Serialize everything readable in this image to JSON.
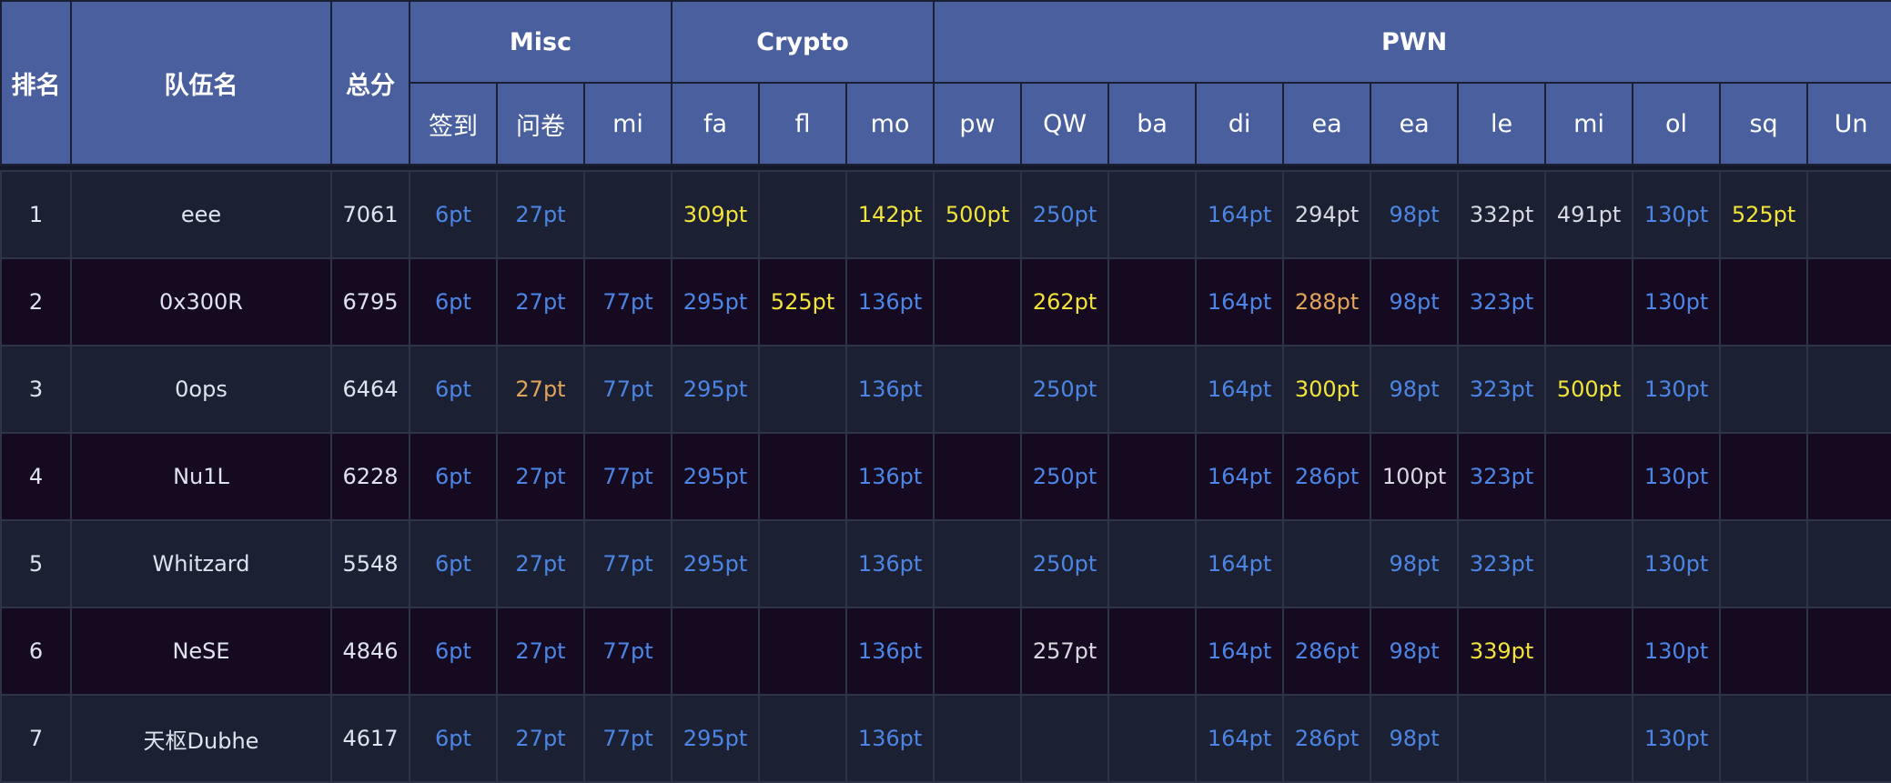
{
  "header": {
    "rank": "排名",
    "team": "队伍名",
    "total": "总分",
    "categories": [
      {
        "label": "Misc",
        "span": 3
      },
      {
        "label": "Crypto",
        "span": 3
      },
      {
        "label": "PWN",
        "span": 11
      }
    ],
    "challenges": [
      "签到",
      "问卷",
      "mi",
      "fa",
      "fl",
      "mo",
      "pw",
      "QW",
      "ba",
      "di",
      "ea",
      "ea",
      "le",
      "mi",
      "ol",
      "sq",
      "Un"
    ]
  },
  "colors": {
    "blue": "#4b86e6",
    "yellow": "#f2e43a",
    "orange": "#e0a45b",
    "white": "#d8d8e0",
    "header_bg": "#4a5f9e"
  },
  "rows": [
    {
      "rank": "1",
      "team": "eee",
      "total": "7061",
      "scores": [
        [
          "6pt",
          "blue"
        ],
        [
          "27pt",
          "blue"
        ],
        [
          "",
          ""
        ],
        [
          "309pt",
          "yellow"
        ],
        [
          "",
          ""
        ],
        [
          "142pt",
          "yellow"
        ],
        [
          "500pt",
          "yellow"
        ],
        [
          "250pt",
          "blue"
        ],
        [
          "",
          ""
        ],
        [
          "164pt",
          "blue"
        ],
        [
          "294pt",
          "white"
        ],
        [
          "98pt",
          "blue"
        ],
        [
          "332pt",
          "white"
        ],
        [
          "491pt",
          "white"
        ],
        [
          "130pt",
          "blue"
        ],
        [
          "525pt",
          "yellow"
        ],
        [
          "",
          ""
        ]
      ]
    },
    {
      "rank": "2",
      "team": "0x300R",
      "total": "6795",
      "scores": [
        [
          "6pt",
          "blue"
        ],
        [
          "27pt",
          "blue"
        ],
        [
          "77pt",
          "blue"
        ],
        [
          "295pt",
          "blue"
        ],
        [
          "525pt",
          "yellow"
        ],
        [
          "136pt",
          "blue"
        ],
        [
          "",
          ""
        ],
        [
          "262pt",
          "yellow"
        ],
        [
          "",
          ""
        ],
        [
          "164pt",
          "blue"
        ],
        [
          "288pt",
          "orange"
        ],
        [
          "98pt",
          "blue"
        ],
        [
          "323pt",
          "blue"
        ],
        [
          "",
          ""
        ],
        [
          "130pt",
          "blue"
        ],
        [
          "",
          ""
        ],
        [
          "",
          ""
        ]
      ]
    },
    {
      "rank": "3",
      "team": "0ops",
      "total": "6464",
      "scores": [
        [
          "6pt",
          "blue"
        ],
        [
          "27pt",
          "orange"
        ],
        [
          "77pt",
          "blue"
        ],
        [
          "295pt",
          "blue"
        ],
        [
          "",
          ""
        ],
        [
          "136pt",
          "blue"
        ],
        [
          "",
          ""
        ],
        [
          "250pt",
          "blue"
        ],
        [
          "",
          ""
        ],
        [
          "164pt",
          "blue"
        ],
        [
          "300pt",
          "yellow"
        ],
        [
          "98pt",
          "blue"
        ],
        [
          "323pt",
          "blue"
        ],
        [
          "500pt",
          "yellow"
        ],
        [
          "130pt",
          "blue"
        ],
        [
          "",
          ""
        ],
        [
          "",
          ""
        ]
      ]
    },
    {
      "rank": "4",
      "team": "Nu1L",
      "total": "6228",
      "scores": [
        [
          "6pt",
          "blue"
        ],
        [
          "27pt",
          "blue"
        ],
        [
          "77pt",
          "blue"
        ],
        [
          "295pt",
          "blue"
        ],
        [
          "",
          ""
        ],
        [
          "136pt",
          "blue"
        ],
        [
          "",
          ""
        ],
        [
          "250pt",
          "blue"
        ],
        [
          "",
          ""
        ],
        [
          "164pt",
          "blue"
        ],
        [
          "286pt",
          "blue"
        ],
        [
          "100pt",
          "white"
        ],
        [
          "323pt",
          "blue"
        ],
        [
          "",
          ""
        ],
        [
          "130pt",
          "blue"
        ],
        [
          "",
          ""
        ],
        [
          "",
          ""
        ]
      ]
    },
    {
      "rank": "5",
      "team": "Whitzard",
      "total": "5548",
      "scores": [
        [
          "6pt",
          "blue"
        ],
        [
          "27pt",
          "blue"
        ],
        [
          "77pt",
          "blue"
        ],
        [
          "295pt",
          "blue"
        ],
        [
          "",
          ""
        ],
        [
          "136pt",
          "blue"
        ],
        [
          "",
          ""
        ],
        [
          "250pt",
          "blue"
        ],
        [
          "",
          ""
        ],
        [
          "164pt",
          "blue"
        ],
        [
          "",
          ""
        ],
        [
          "98pt",
          "blue"
        ],
        [
          "323pt",
          "blue"
        ],
        [
          "",
          ""
        ],
        [
          "130pt",
          "blue"
        ],
        [
          "",
          ""
        ],
        [
          "",
          ""
        ]
      ]
    },
    {
      "rank": "6",
      "team": "NeSE",
      "total": "4846",
      "scores": [
        [
          "6pt",
          "blue"
        ],
        [
          "27pt",
          "blue"
        ],
        [
          "77pt",
          "blue"
        ],
        [
          "",
          ""
        ],
        [
          "",
          ""
        ],
        [
          "136pt",
          "blue"
        ],
        [
          "",
          ""
        ],
        [
          "257pt",
          "white"
        ],
        [
          "",
          ""
        ],
        [
          "164pt",
          "blue"
        ],
        [
          "286pt",
          "blue"
        ],
        [
          "98pt",
          "blue"
        ],
        [
          "339pt",
          "yellow"
        ],
        [
          "",
          ""
        ],
        [
          "130pt",
          "blue"
        ],
        [
          "",
          ""
        ],
        [
          "",
          ""
        ]
      ]
    },
    {
      "rank": "7",
      "team": "天枢Dubhe",
      "total": "4617",
      "scores": [
        [
          "6pt",
          "blue"
        ],
        [
          "27pt",
          "blue"
        ],
        [
          "77pt",
          "blue"
        ],
        [
          "295pt",
          "blue"
        ],
        [
          "",
          ""
        ],
        [
          "136pt",
          "blue"
        ],
        [
          "",
          ""
        ],
        [
          "",
          ""
        ],
        [
          "",
          ""
        ],
        [
          "164pt",
          "blue"
        ],
        [
          "286pt",
          "blue"
        ],
        [
          "98pt",
          "blue"
        ],
        [
          "",
          ""
        ],
        [
          "",
          ""
        ],
        [
          "130pt",
          "blue"
        ],
        [
          "",
          ""
        ],
        [
          "",
          ""
        ]
      ]
    }
  ]
}
